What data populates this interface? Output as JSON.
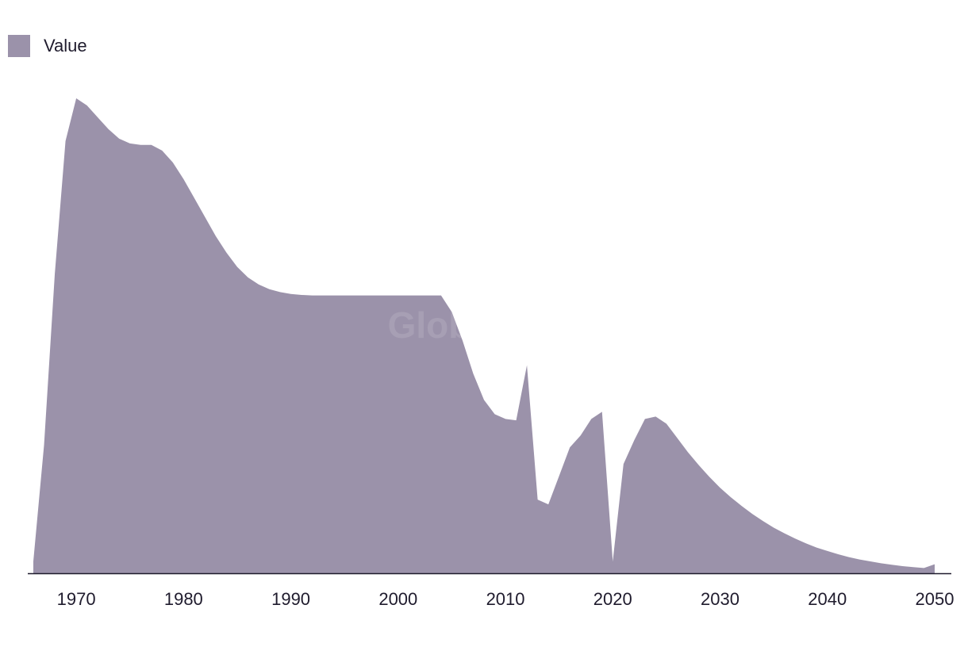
{
  "watermark": "GlobalData",
  "colors": {
    "area": "#9b92aa",
    "axis": "#1f1b2d",
    "text": "#1f1b2d"
  },
  "chart_data": {
    "type": "area",
    "title": "",
    "xlabel": "",
    "ylabel": "",
    "legend": "top-left",
    "grid": false,
    "xlim": [
      1965,
      2051
    ],
    "ylim": [
      0,
      100
    ],
    "x_ticks": [
      1970,
      1980,
      1990,
      2000,
      2010,
      2020,
      2030,
      2040,
      2050
    ],
    "series": [
      {
        "name": "Value",
        "color": "#9b92aa",
        "x": [
          1966,
          1967,
          1968,
          1969,
          1970,
          1971,
          1972,
          1973,
          1974,
          1975,
          1976,
          1977,
          1978,
          1979,
          1980,
          1981,
          1982,
          1983,
          1984,
          1985,
          1986,
          1987,
          1988,
          1989,
          1990,
          1991,
          1992,
          1993,
          1994,
          1995,
          1996,
          1997,
          1998,
          1999,
          2000,
          2001,
          2002,
          2003,
          2004,
          2005,
          2006,
          2007,
          2008,
          2009,
          2010,
          2011,
          2012,
          2013,
          2014,
          2015,
          2016,
          2017,
          2018,
          2019,
          2020,
          2021,
          2022,
          2023,
          2024,
          2025,
          2026,
          2027,
          2028,
          2029,
          2030,
          2031,
          2032,
          2033,
          2034,
          2035,
          2036,
          2037,
          2038,
          2039,
          2040,
          2041,
          2042,
          2043,
          2044,
          2045,
          2046,
          2047,
          2048,
          2049,
          2050
        ],
        "values": [
          2.5,
          27,
          63,
          91,
          100,
          98.5,
          96,
          93.5,
          91.5,
          90.5,
          90.2,
          90.2,
          89,
          86.5,
          83,
          79,
          75,
          71,
          67.5,
          64.5,
          62.3,
          60.8,
          59.8,
          59.2,
          58.8,
          58.6,
          58.5,
          58.5,
          58.5,
          58.5,
          58.5,
          58.5,
          58.5,
          58.5,
          58.5,
          58.5,
          58.5,
          58.5,
          58.5,
          55,
          49,
          42,
          36.5,
          33.5,
          32.5,
          32.2,
          43.8,
          15.5,
          14.5,
          20.5,
          26.5,
          29,
          32.5,
          34,
          2.5,
          23,
          28,
          32.5,
          33,
          31.5,
          28.5,
          25.5,
          22.8,
          20.3,
          18,
          16,
          14.2,
          12.5,
          11,
          9.6,
          8.4,
          7.3,
          6.3,
          5.4,
          4.7,
          4,
          3.4,
          2.9,
          2.5,
          2.1,
          1.8,
          1.5,
          1.3,
          1.1,
          1.9
        ]
      }
    ]
  }
}
